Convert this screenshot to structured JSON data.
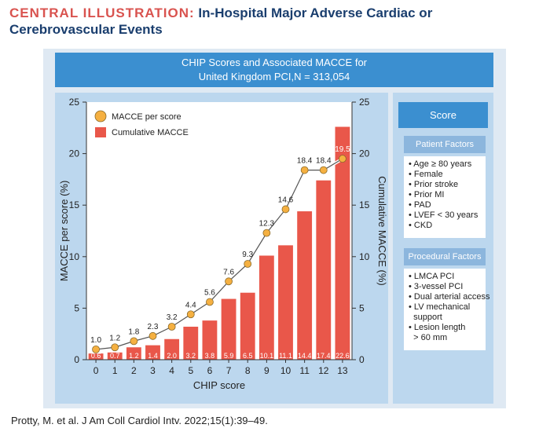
{
  "header": {
    "label": "CENTRAL ILLUSTRATION:",
    "title_line1": "In-Hospital Major Adverse Cardiac or",
    "title_line2": "Cerebrovascular Events"
  },
  "banner": {
    "line1": "CHIP Scores and Associated MACCE for",
    "line2": "United Kingdom PCI,N = 313,054"
  },
  "side": {
    "score_label": "Score",
    "patient_title": "Patient Factors",
    "patient_items": [
      "• Age ≥ 80 years",
      "• Female",
      "• Prior stroke",
      "• Prior MI",
      "• PAD",
      "• LVEF < 30 years",
      "• CKD"
    ],
    "procedural_title": "Procedural Factors",
    "procedural_items": [
      "• LMCA PCI",
      "• 3-vessel PCI",
      "• Dual arterial access",
      "• LV mechanical",
      "  support",
      "• Lesion length",
      "  > 60 mm"
    ]
  },
  "citation": "Protty, M. et al. J Am Coll Cardiol Intv. 2022;15(1):39–49.",
  "colors": {
    "bar": "#e9574a",
    "point": "#f5b041",
    "line": "#ffffff",
    "banner": "#3b8fd0"
  },
  "chart_data": {
    "type": "bar",
    "xlabel": "CHIP score",
    "ylabel_left": "MACCE per  score (%)",
    "ylabel_right": "Cumulative MACCE (%)",
    "ylim": [
      0,
      25
    ],
    "yticks": [
      0,
      5,
      10,
      15,
      20,
      25
    ],
    "categories": [
      "0",
      "1",
      "2",
      "3",
      "4",
      "5",
      "6",
      "7",
      "8",
      "9",
      "10",
      "11",
      "12",
      "13"
    ],
    "legend": [
      "MACCE per score",
      "Cumulative MACCE"
    ],
    "legend_position": "top-left",
    "series": [
      {
        "name": "Cumulative MACCE",
        "kind": "bar",
        "axis": "right",
        "values": [
          0.6,
          0.7,
          1.2,
          1.4,
          2.0,
          3.2,
          3.8,
          5.9,
          6.5,
          10.1,
          11.1,
          14.4,
          17.4,
          22.6
        ],
        "labels": [
          "0.6",
          "0.7",
          "1.2",
          "1.4",
          "2.0",
          "3.2",
          "3.8",
          "5.9",
          "6.5",
          "10.1",
          "11.1",
          "14.4",
          "17.4",
          "22.6"
        ]
      },
      {
        "name": "MACCE per score",
        "kind": "line",
        "axis": "left",
        "values": [
          1.0,
          1.2,
          1.8,
          2.3,
          3.2,
          4.4,
          5.6,
          7.6,
          9.3,
          12.3,
          14.6,
          18.4,
          18.4,
          19.5
        ],
        "labels": [
          "1.0",
          "1.2",
          "1.8",
          "2.3",
          "3.2",
          "4.4",
          "5.6",
          "7.6",
          "9.3",
          "12.3",
          "14.6",
          "18.4",
          "18.4",
          "19.5"
        ]
      }
    ]
  }
}
